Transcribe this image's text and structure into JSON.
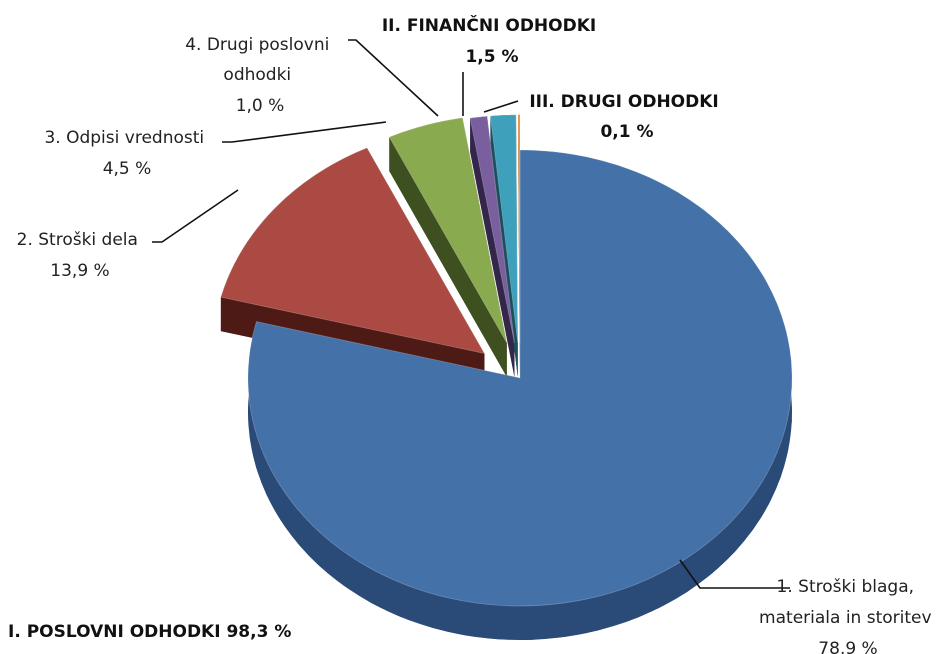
{
  "chart_data": {
    "type": "pie",
    "style": "3d-exploded",
    "legend": "none",
    "slices": [
      {
        "name": "1. Stroški blaga, materiala in storitev",
        "value": 78.9,
        "value_label": "78,9 %",
        "color": "#4472a8",
        "side_color": "#2a4a78",
        "group": "I. POSLOVNI ODHODKI"
      },
      {
        "name": "2. Stroški dela",
        "value": 13.9,
        "value_label": "13,9 %",
        "color": "#aa4a42",
        "side_color": "#4e1a16",
        "group": "I. POSLOVNI ODHODKI"
      },
      {
        "name": "3. Odpisi vrednosti",
        "value": 4.5,
        "value_label": "4,5 %",
        "color": "#8aaa50",
        "side_color": "#3e5020",
        "group": "I. POSLOVNI ODHODKI"
      },
      {
        "name": "4. Drugi poslovni odhodki",
        "value": 1.0,
        "value_label": "1,0 %",
        "color": "#7a5f9f",
        "side_color": "#34264a",
        "group": "I. POSLOVNI ODHODKI"
      },
      {
        "name": "II. FINANČNI ODHODKI",
        "value": 1.5,
        "value_label": "1,5 %",
        "color": "#3fa0bb",
        "side_color": "#1c4e5e",
        "group": "II. FINANČNI ODHODKI"
      },
      {
        "name": "III. DRUGI ODHODKI",
        "value": 0.1,
        "value_label": "0,1 %",
        "color": "#f08a26",
        "side_color": "#8a4a10",
        "group": "III. DRUGI ODHODKI"
      }
    ],
    "group_total": {
      "label": "I. POSLOVNI ODHODKI 98,3 %"
    },
    "labels": {
      "s1": [
        "1. Stroški blaga,",
        "materiala in storitev",
        "78,9 %"
      ],
      "s2": [
        "2. Stroški dela",
        "13,9 %"
      ],
      "s3": [
        "3. Odpisi vrednosti",
        "4,5 %"
      ],
      "s4": [
        "4. Drugi poslovni",
        "odhodki",
        "1,0 %"
      ],
      "s5": [
        "II. FINANČNI ODHODKI",
        "1,5 %"
      ],
      "s6": [
        "III. DRUGI ODHODKI",
        "0,1 %"
      ]
    }
  }
}
